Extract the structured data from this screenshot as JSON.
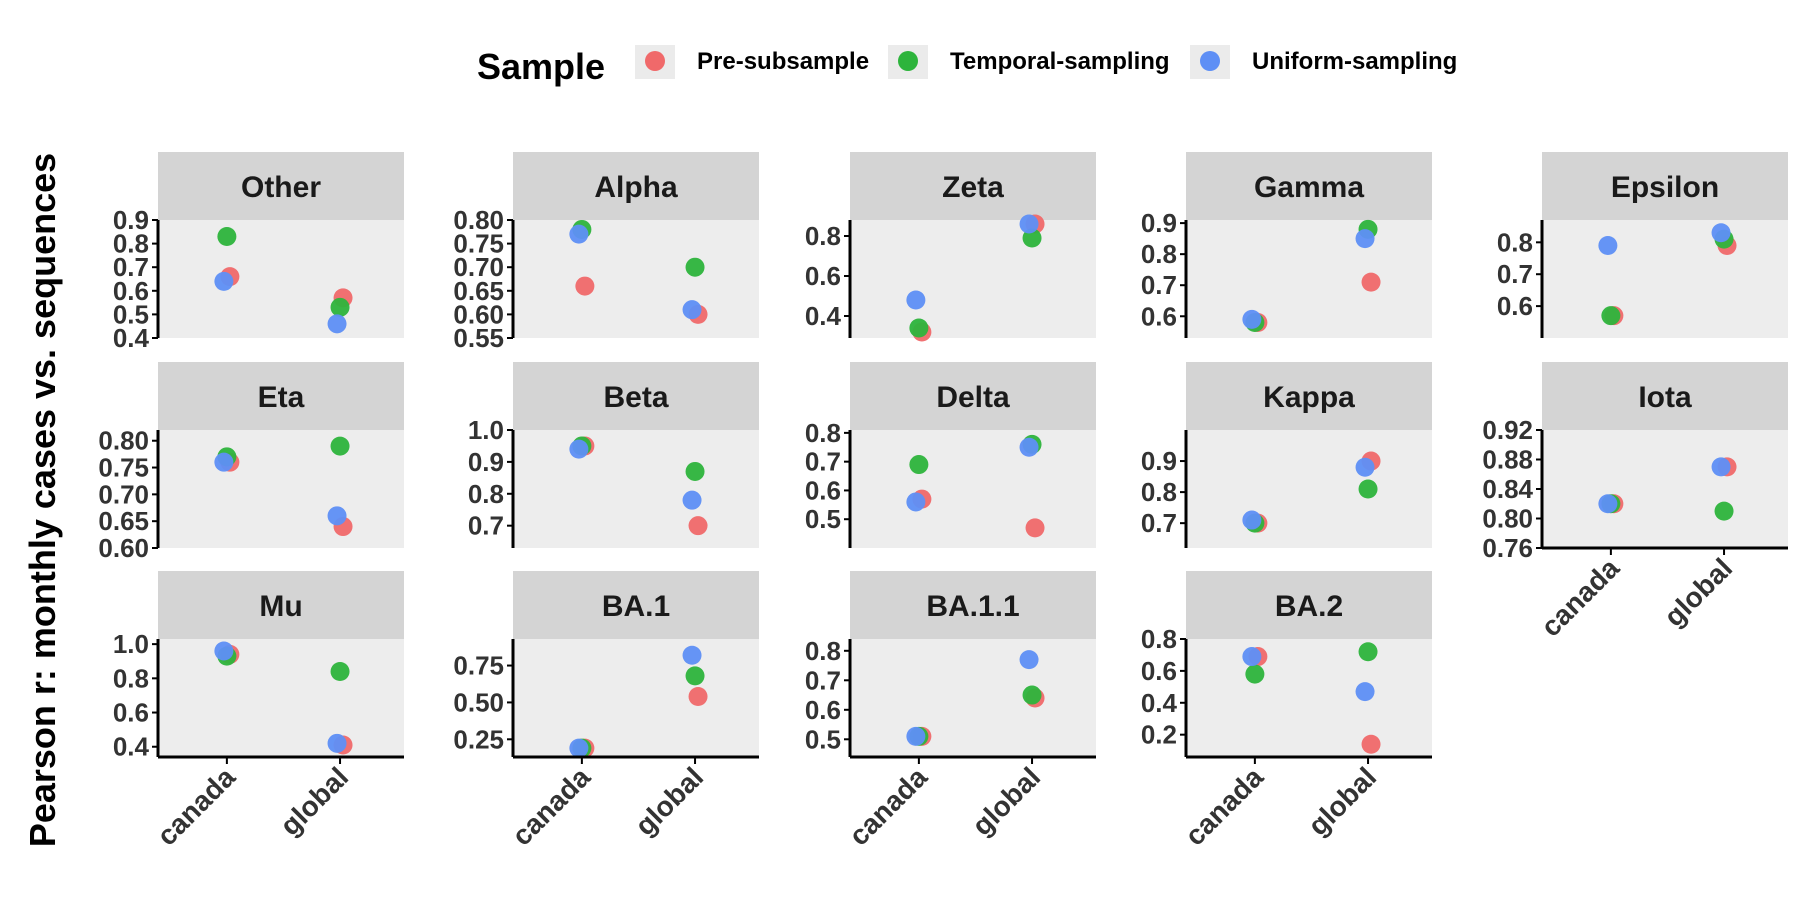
{
  "y_axis_label": "Pearson r: monthly cases vs. sequences",
  "legend": {
    "title": "Sample",
    "position": "top",
    "entries": [
      {
        "label": "Pre-subsample",
        "color": "#F0696A"
      },
      {
        "label": "Temporal-sampling",
        "color": "#2DB43C"
      },
      {
        "label": "Uniform-sampling",
        "color": "#5E8FF5"
      }
    ]
  },
  "chart_data": {
    "type": "scatter",
    "facet_grid": {
      "rows": 3,
      "cols": 5
    },
    "categories": [
      "canada",
      "global"
    ],
    "series": [
      {
        "name": "Pre-subsample",
        "color": "#F0696A"
      },
      {
        "name": "Temporal-sampling",
        "color": "#2DB43C"
      },
      {
        "name": "Uniform-sampling",
        "color": "#5E8FF5"
      }
    ],
    "panels": [
      {
        "title": "Other",
        "ylim": [
          0.4,
          0.9
        ],
        "yticks": [
          "0.4",
          "0.5",
          "0.6",
          "0.7",
          "0.8",
          "0.9"
        ],
        "values": {
          "Pre-subsample": [
            0.66,
            0.57
          ],
          "Temporal-sampling": [
            0.83,
            0.53
          ],
          "Uniform-sampling": [
            0.64,
            0.46
          ]
        }
      },
      {
        "title": "Alpha",
        "ylim": [
          0.55,
          0.8
        ],
        "yticks": [
          "0.55",
          "0.60",
          "0.65",
          "0.70",
          "0.75",
          "0.80"
        ],
        "values": {
          "Pre-subsample": [
            0.66,
            0.6
          ],
          "Temporal-sampling": [
            0.78,
            0.7
          ],
          "Uniform-sampling": [
            0.77,
            0.61
          ]
        }
      },
      {
        "title": "Zeta",
        "ylim": [
          0.29,
          0.88
        ],
        "yticks": [
          "0.4",
          "0.6",
          "0.8"
        ],
        "values": {
          "Pre-subsample": [
            0.32,
            0.86
          ],
          "Temporal-sampling": [
            0.34,
            0.79
          ],
          "Uniform-sampling": [
            0.48,
            0.86
          ]
        }
      },
      {
        "title": "Gamma",
        "ylim": [
          0.53,
          0.91
        ],
        "yticks": [
          "0.6",
          "0.7",
          "0.8",
          "0.9"
        ],
        "values": {
          "Pre-subsample": [
            0.58,
            0.71
          ],
          "Temporal-sampling": [
            0.58,
            0.88
          ],
          "Uniform-sampling": [
            0.59,
            0.85
          ]
        }
      },
      {
        "title": "Epsilon",
        "ylim": [
          0.5,
          0.87
        ],
        "yticks": [
          "0.6",
          "0.7",
          "0.8"
        ],
        "values": {
          "Pre-subsample": [
            0.57,
            0.79
          ],
          "Temporal-sampling": [
            0.57,
            0.81
          ],
          "Uniform-sampling": [
            0.79,
            0.83
          ]
        }
      },
      {
        "title": "Eta",
        "ylim": [
          0.6,
          0.82
        ],
        "yticks": [
          "0.60",
          "0.65",
          "0.70",
          "0.75",
          "0.80"
        ],
        "values": {
          "Pre-subsample": [
            0.76,
            0.64
          ],
          "Temporal-sampling": [
            0.77,
            0.79
          ],
          "Uniform-sampling": [
            0.76,
            0.66
          ]
        }
      },
      {
        "title": "Beta",
        "ylim": [
          0.63,
          1.0
        ],
        "yticks": [
          "0.7",
          "0.8",
          "0.9",
          "1.0"
        ],
        "values": {
          "Pre-subsample": [
            0.95,
            0.7
          ],
          "Temporal-sampling": [
            0.95,
            0.87
          ],
          "Uniform-sampling": [
            0.94,
            0.78
          ]
        }
      },
      {
        "title": "Delta",
        "ylim": [
          0.4,
          0.81
        ],
        "yticks": [
          "0.5",
          "0.6",
          "0.7",
          "0.8"
        ],
        "values": {
          "Pre-subsample": [
            0.57,
            0.47
          ],
          "Temporal-sampling": [
            0.69,
            0.76
          ],
          "Uniform-sampling": [
            0.56,
            0.75
          ]
        }
      },
      {
        "title": "Kappa",
        "ylim": [
          0.62,
          1.0
        ],
        "yticks": [
          "0.7",
          "0.8",
          "0.9"
        ],
        "values": {
          "Pre-subsample": [
            0.7,
            0.9
          ],
          "Temporal-sampling": [
            0.7,
            0.81
          ],
          "Uniform-sampling": [
            0.71,
            0.88
          ]
        }
      },
      {
        "title": "Iota",
        "ylim": [
          0.76,
          0.92
        ],
        "yticks": [
          "0.76",
          "0.80",
          "0.84",
          "0.88",
          "0.92"
        ],
        "values": {
          "Pre-subsample": [
            0.82,
            0.87
          ],
          "Temporal-sampling": [
            0.82,
            0.81
          ],
          "Uniform-sampling": [
            0.82,
            0.87
          ]
        }
      },
      {
        "title": "Mu",
        "ylim": [
          0.34,
          1.03
        ],
        "yticks": [
          "0.4",
          "0.6",
          "0.8",
          "1.0"
        ],
        "values": {
          "Pre-subsample": [
            0.94,
            0.41
          ],
          "Temporal-sampling": [
            0.93,
            0.84
          ],
          "Uniform-sampling": [
            0.96,
            0.42
          ]
        }
      },
      {
        "title": "BA.1",
        "ylim": [
          0.13,
          0.93
        ],
        "yticks": [
          "0.25",
          "0.50",
          "0.75"
        ],
        "values": {
          "Pre-subsample": [
            0.19,
            0.54
          ],
          "Temporal-sampling": [
            0.19,
            0.68
          ],
          "Uniform-sampling": [
            0.19,
            0.82
          ]
        }
      },
      {
        "title": "BA.1.1",
        "ylim": [
          0.44,
          0.84
        ],
        "yticks": [
          "0.5",
          "0.6",
          "0.7",
          "0.8"
        ],
        "values": {
          "Pre-subsample": [
            0.51,
            0.64
          ],
          "Temporal-sampling": [
            0.51,
            0.65
          ],
          "Uniform-sampling": [
            0.51,
            0.77
          ]
        }
      },
      {
        "title": "BA.2",
        "ylim": [
          0.06,
          0.8
        ],
        "yticks": [
          "0.2",
          "0.4",
          "0.6",
          "0.8"
        ],
        "values": {
          "Pre-subsample": [
            0.69,
            0.14
          ],
          "Temporal-sampling": [
            0.58,
            0.72
          ],
          "Uniform-sampling": [
            0.69,
            0.47
          ]
        }
      }
    ]
  }
}
